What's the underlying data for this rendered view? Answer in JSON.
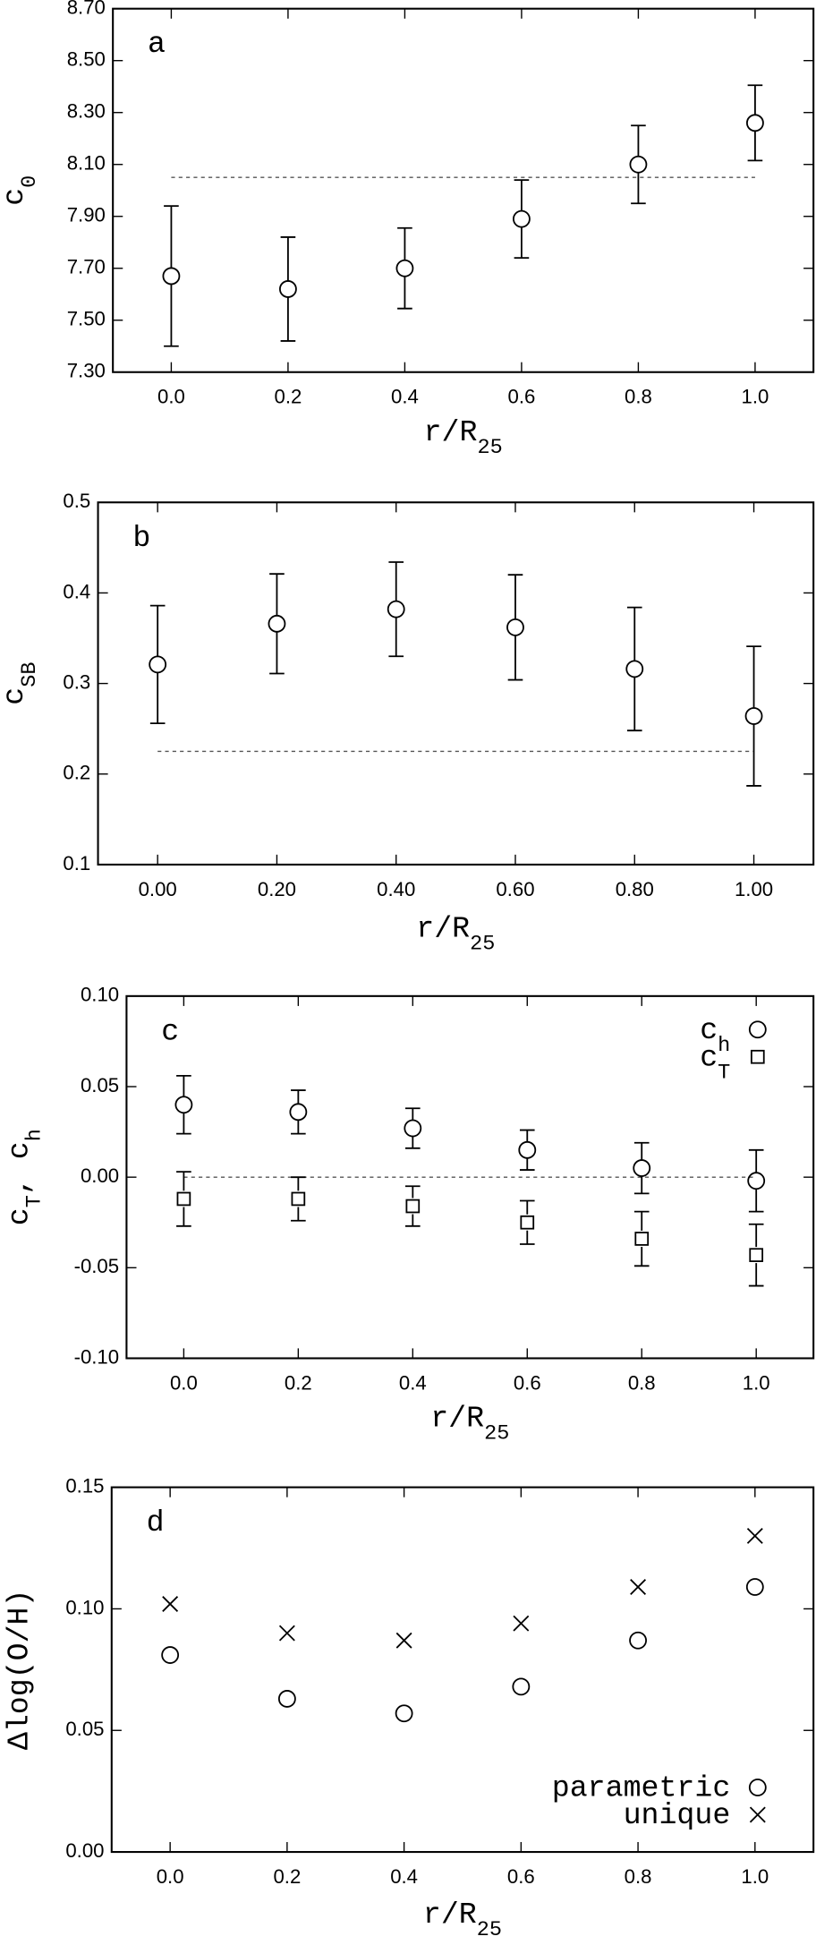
{
  "chart_data": [
    {
      "type": "scatter",
      "annotation": "a",
      "ylabel": [
        "c",
        "0"
      ],
      "xlabel": [
        "r/R",
        "25"
      ],
      "x": [
        0,
        0.2,
        0.4,
        0.6,
        0.8,
        1
      ],
      "series": [
        {
          "marker": "circle",
          "color": "#000000",
          "values": [
            7.67,
            7.62,
            7.7,
            7.89,
            8.1,
            8.26
          ],
          "errors": [
            0.27,
            0.2,
            0.155,
            0.15,
            0.15,
            0.145
          ]
        }
      ],
      "hline": 8.05,
      "xlim": [
        -0.1,
        1.1
      ],
      "ylim": [
        7.3,
        8.7
      ],
      "xticks": [
        {
          "value": 0,
          "label": "0.0"
        },
        0.2,
        0.4,
        0.6,
        0.8,
        {
          "value": 1,
          "label": "1.0"
        }
      ],
      "yticks": [
        {
          "value": 7.3,
          "label": "7.30"
        },
        {
          "value": 7.5,
          "label": "7.50"
        },
        {
          "value": 7.7,
          "label": "7.70"
        },
        {
          "value": 7.9,
          "label": "7.90"
        },
        {
          "value": 8.1,
          "label": "8.10"
        },
        {
          "value": 8.3,
          "label": "8.30"
        },
        {
          "value": 8.5,
          "label": "8.50"
        },
        {
          "value": 8.7,
          "label": "8.70"
        }
      ]
    },
    {
      "type": "scatter",
      "annotation": "b",
      "ylabel": [
        "c",
        "SB"
      ],
      "xlabel": [
        "r/R",
        "25"
      ],
      "x": [
        0,
        0.2,
        0.4,
        0.6,
        0.8,
        1
      ],
      "series": [
        {
          "marker": "circle",
          "color": "#000000",
          "values": [
            0.321,
            0.366,
            0.382,
            0.362,
            0.316,
            0.264
          ],
          "errors": [
            0.065,
            0.055,
            0.052,
            0.058,
            0.068,
            0.077
          ]
        }
      ],
      "hline": 0.225,
      "xlim": [
        -0.1,
        1.1
      ],
      "ylim": [
        0.1,
        0.5
      ],
      "xticks": [
        {
          "value": 0,
          "label": "0.00"
        },
        {
          "value": 0.2,
          "label": "0.20"
        },
        {
          "value": 0.4,
          "label": "0.40"
        },
        {
          "value": 0.6,
          "label": "0.60"
        },
        {
          "value": 0.8,
          "label": "0.80"
        },
        {
          "value": 1,
          "label": "1.00"
        }
      ],
      "yticks": [
        0.1,
        0.2,
        0.3,
        0.4,
        0.5
      ]
    },
    {
      "type": "scatter",
      "annotation": "c",
      "ylabel": [
        "c",
        "T",
        ", c",
        "h"
      ],
      "xlabel": [
        "r/R",
        "25"
      ],
      "x": [
        0,
        0.2,
        0.4,
        0.6,
        0.8,
        1
      ],
      "series": [
        {
          "name": "c",
          "name_sub": "h",
          "marker": "circle",
          "color": "#000000",
          "values": [
            0.04,
            0.036,
            0.027,
            0.015,
            0.005,
            -0.002
          ],
          "errors": [
            0.016,
            0.012,
            0.011,
            0.011,
            0.014,
            0.017
          ]
        },
        {
          "name": "c",
          "name_sub": "T",
          "marker": "square",
          "color": "#000000",
          "values": [
            -0.012,
            -0.012,
            -0.016,
            -0.025,
            -0.034,
            -0.043
          ],
          "errors": [
            0.015,
            0.012,
            0.011,
            0.012,
            0.015,
            0.017
          ]
        }
      ],
      "hline": 0,
      "legend": "upper right",
      "xlim": [
        -0.1,
        1.1
      ],
      "ylim": [
        -0.1,
        0.1
      ],
      "xticks": [
        {
          "value": 0,
          "label": "0.0"
        },
        0.2,
        0.4,
        0.6,
        0.8,
        {
          "value": 1,
          "label": "1.0"
        }
      ],
      "yticks": [
        {
          "value": -0.1,
          "label": "-0.10"
        },
        {
          "value": -0.05,
          "label": "-0.05"
        },
        {
          "value": 0,
          "label": "0.00"
        },
        {
          "value": 0.05,
          "label": "0.05"
        },
        {
          "value": 0.1,
          "label": "0.10"
        }
      ]
    },
    {
      "type": "scatter",
      "annotation": "d",
      "ylabel": [
        "Δlog(O/H)"
      ],
      "xlabel": [
        "r/R",
        "25"
      ],
      "x": [
        0,
        0.2,
        0.4,
        0.6,
        0.8,
        1
      ],
      "series": [
        {
          "name": "parametric",
          "marker": "circle",
          "color": "#000000",
          "values": [
            0.081,
            0.063,
            0.057,
            0.068,
            0.087,
            0.109
          ]
        },
        {
          "name": "unique",
          "marker": "x",
          "color": "#000000",
          "values": [
            0.102,
            0.09,
            0.087,
            0.094,
            0.109,
            0.13
          ]
        }
      ],
      "legend": "lower right",
      "xlim": [
        -0.1,
        1.1
      ],
      "ylim": [
        0,
        0.15
      ],
      "xticks": [
        {
          "value": 0,
          "label": "0.0"
        },
        0.2,
        0.4,
        0.6,
        0.8,
        {
          "value": 1,
          "label": "1.0"
        }
      ],
      "yticks": [
        {
          "value": 0,
          "label": "0.00"
        },
        {
          "value": 0.05,
          "label": "0.05"
        },
        {
          "value": 0.1,
          "label": "0.10"
        },
        {
          "value": 0.15,
          "label": "0.15"
        }
      ]
    }
  ]
}
